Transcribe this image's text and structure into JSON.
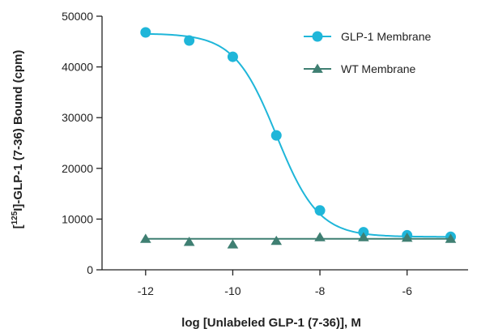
{
  "chart_data": {
    "type": "line",
    "title": "",
    "xlabel": "log [Unlabeled GLP-1 (7-36)], M",
    "ylabel_prefix": "[",
    "ylabel_sup": "125",
    "ylabel_suffix": "I]-GLP-1 (7-36) Bound (cpm)",
    "xlim": [
      -13,
      -4.6
    ],
    "ylim": [
      0,
      50000
    ],
    "x_ticks": [
      -12,
      -10,
      -8,
      -6
    ],
    "x_tick_labels": [
      "-12",
      "-10",
      "-8",
      "-6"
    ],
    "y_ticks": [
      0,
      10000,
      20000,
      30000,
      40000,
      50000
    ],
    "y_tick_labels": [
      "0",
      "10000",
      "20000",
      "30000",
      "40000",
      "50000"
    ],
    "legend_position": "top-right",
    "grid": false,
    "series": [
      {
        "name": "GLP-1 Membrane",
        "marker": "circle",
        "color": "#1fb6d9",
        "fit": {
          "bottom": 6500,
          "top": 46600,
          "log_ic50": -9.0,
          "hill": -0.9
        },
        "points": [
          {
            "x": -12,
            "y": 46800
          },
          {
            "x": -11,
            "y": 45200
          },
          {
            "x": -10,
            "y": 42000
          },
          {
            "x": -9,
            "y": 26500
          },
          {
            "x": -8,
            "y": 11700
          },
          {
            "x": -7,
            "y": 7400
          },
          {
            "x": -6,
            "y": 6800
          },
          {
            "x": -5,
            "y": 6500
          }
        ]
      },
      {
        "name": "WT Membrane",
        "marker": "triangle",
        "color": "#3f7f72",
        "fit": {
          "constant": 6100
        },
        "points": [
          {
            "x": -12,
            "y": 6100
          },
          {
            "x": -11,
            "y": 5500
          },
          {
            "x": -10,
            "y": 5000
          },
          {
            "x": -9,
            "y": 5700
          },
          {
            "x": -8,
            "y": 6400
          },
          {
            "x": -7,
            "y": 6400
          },
          {
            "x": -6,
            "y": 6300
          },
          {
            "x": -5,
            "y": 6100
          }
        ]
      }
    ]
  }
}
